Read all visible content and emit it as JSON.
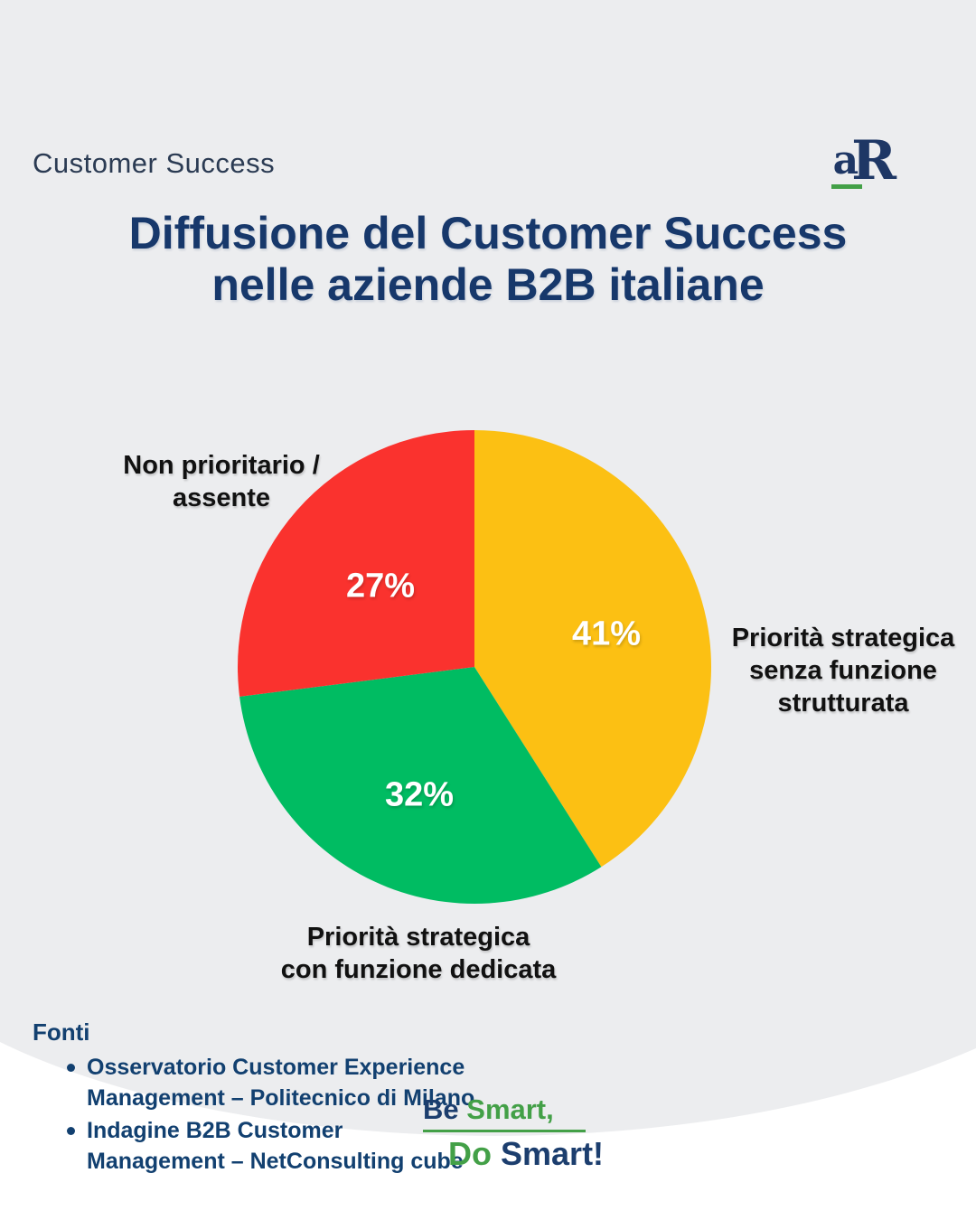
{
  "header": {
    "category": "Customer Success",
    "logo": {
      "a": "a",
      "r": "R"
    },
    "title_line1": "Diffusione del Customer Success",
    "title_line2": "nelle aziende B2B italiane"
  },
  "chart_data": {
    "type": "pie",
    "title": "Diffusione del Customer Success nelle aziende B2B italiane",
    "start_angle_deg": 0,
    "direction": "clockwise",
    "slices": [
      {
        "label": "Priorità strategica senza funzione strutturata",
        "label_lines": [
          "Priorità strategica",
          "senza funzione",
          "strutturata"
        ],
        "value": 41,
        "pct_label": "41%",
        "color": "#FCC013"
      },
      {
        "label": "Priorità strategica con funzione dedicata",
        "label_lines": [
          "Priorità strategica",
          "con funzione dedicata"
        ],
        "value": 32,
        "pct_label": "32%",
        "color": "#00BC62"
      },
      {
        "label": "Non prioritario / assente",
        "label_lines": [
          "Non prioritario /",
          "assente"
        ],
        "value": 27,
        "pct_label": "27%",
        "color": "#FA322E"
      }
    ]
  },
  "footer": {
    "heading": "Fonti",
    "sources": [
      [
        "Osservatorio Customer Experience",
        "Management – Politecnico di Milano"
      ],
      [
        "Indagine B2B Customer",
        "Management – NetConsulting cube"
      ]
    ]
  },
  "tagline": {
    "be": "Be",
    "smart1": "Smart,",
    "do": "Do",
    "smart2": "Smart!"
  },
  "colors": {
    "background": "#ECEDEF",
    "title_navy": "#17386B",
    "footer_navy": "#124070",
    "brand_green": "#43A047",
    "slice_yellow": "#FCC013",
    "slice_green": "#00BC62",
    "slice_red": "#FA322E",
    "label_black": "#111111",
    "pct_white": "#FFFFFF"
  }
}
